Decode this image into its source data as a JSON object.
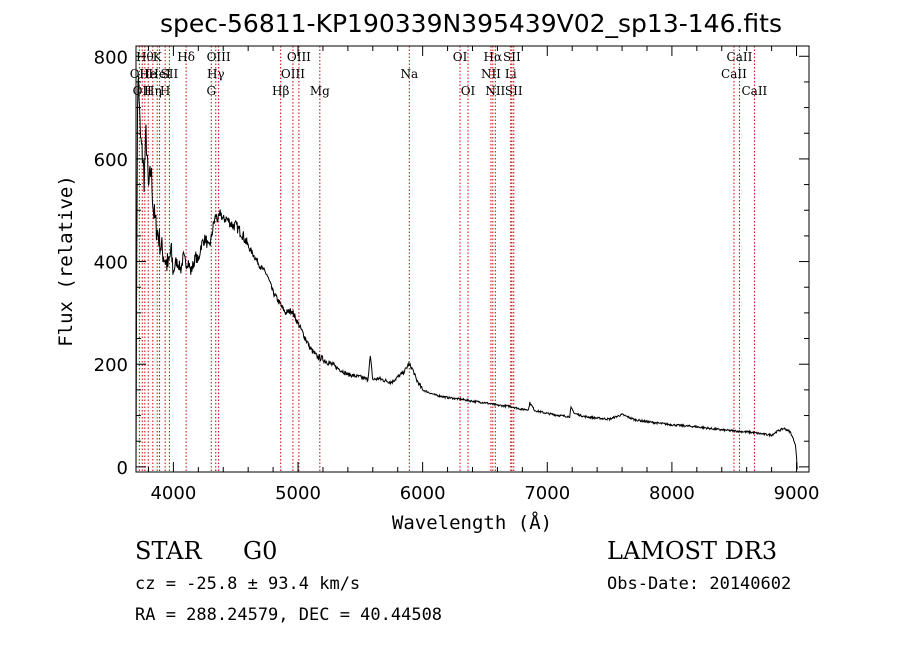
{
  "chart_data": {
    "type": "line",
    "title": "spec-56811-KP190339N395439V02_sp13-146.fits",
    "xlabel": "Wavelength (Å)",
    "ylabel": "Flux (relative)",
    "xlim": [
      3700,
      9100
    ],
    "ylim": [
      -10,
      820
    ],
    "x_ticks": [
      4000,
      5000,
      6000,
      7000,
      8000,
      9000
    ],
    "y_ticks": [
      0,
      200,
      400,
      600,
      800
    ],
    "x_tick_labels": [
      "4000",
      "5000",
      "6000",
      "7000",
      "8000",
      "9000"
    ],
    "y_tick_labels": [
      "0",
      "200",
      "400",
      "600",
      "800"
    ],
    "grid": false,
    "legend": "none",
    "series": [
      {
        "name": "flux",
        "x": [
          3700,
          3705,
          3712,
          3720,
          3728,
          3736,
          3745,
          3755,
          3765,
          3780,
          3800,
          3820,
          3840,
          3860,
          3880,
          3900,
          3920,
          3940,
          3960,
          3980,
          4000,
          4020,
          4040,
          4060,
          4080,
          4100,
          4120,
          4140,
          4160,
          4180,
          4200,
          4220,
          4240,
          4260,
          4280,
          4300,
          4320,
          4340,
          4360,
          4380,
          4400,
          4420,
          4440,
          4460,
          4480,
          4500,
          4550,
          4600,
          4650,
          4700,
          4750,
          4800,
          4850,
          4900,
          4950,
          5000,
          5050,
          5100,
          5150,
          5200,
          5300,
          5400,
          5500,
          5560,
          5580,
          5600,
          5650,
          5700,
          5750,
          5800,
          5850,
          5890,
          5920,
          5950,
          6000,
          6100,
          6200,
          6300,
          6400,
          6500,
          6560,
          6600,
          6700,
          6800,
          6850,
          6860,
          6900,
          7000,
          7100,
          7180,
          7190,
          7220,
          7300,
          7400,
          7500,
          7600,
          7700,
          7800,
          7900,
          8000,
          8100,
          8200,
          8300,
          8400,
          8500,
          8600,
          8650,
          8700,
          8800,
          8850,
          8900,
          8950,
          8990,
          9000,
          9005
        ],
        "values": [
          -10,
          330,
          710,
          760,
          690,
          640,
          620,
          600,
          560,
          650,
          540,
          580,
          500,
          470,
          450,
          430,
          415,
          400,
          390,
          420,
          380,
          400,
          395,
          385,
          410,
          395,
          400,
          380,
          395,
          410,
          400,
          430,
          440,
          445,
          425,
          440,
          470,
          490,
          480,
          495,
          480,
          485,
          480,
          475,
          470,
          470,
          455,
          430,
          410,
          390,
          375,
          340,
          320,
          300,
          305,
          280,
          255,
          230,
          215,
          210,
          195,
          180,
          175,
          170,
          215,
          170,
          172,
          168,
          165,
          175,
          185,
          200,
          190,
          170,
          150,
          140,
          135,
          132,
          128,
          125,
          122,
          120,
          118,
          112,
          112,
          125,
          110,
          104,
          100,
          98,
          115,
          104,
          98,
          95,
          93,
          102,
          92,
          88,
          85,
          82,
          80,
          78,
          75,
          72,
          70,
          68,
          67,
          65,
          62,
          70,
          75,
          68,
          45,
          20,
          -5
        ]
      }
    ],
    "reference_lines": [
      {
        "x": 3727,
        "label": "OII",
        "row": 1
      },
      {
        "x": 3750,
        "label": "OII",
        "row": 2
      },
      {
        "x": 3771,
        "label": "Hθ",
        "row": 0
      },
      {
        "x": 3798,
        "label": "He",
        "row": 1
      },
      {
        "x": 3835,
        "label": "Hη",
        "row": 2
      },
      {
        "x": 3870,
        "label": "K",
        "row": 0
      },
      {
        "x": 3889,
        "label": "HeI",
        "row": 1
      },
      {
        "x": 3934,
        "label": "H",
        "row": 2
      },
      {
        "x": 3968,
        "label": "SII",
        "row": 1
      },
      {
        "x": 4102,
        "label": "Hδ",
        "row": 0
      },
      {
        "x": 4304,
        "label": "G",
        "row": 2
      },
      {
        "x": 4340,
        "label": "Hγ",
        "row": 1
      },
      {
        "x": 4363,
        "label": "OIII",
        "row": 0
      },
      {
        "x": 4861,
        "label": "Hβ",
        "row": 2
      },
      {
        "x": 4959,
        "label": "OIII",
        "row": 1
      },
      {
        "x": 5007,
        "label": "OIII",
        "row": 0
      },
      {
        "x": 5175,
        "label": "Mg",
        "row": 2
      },
      {
        "x": 5893,
        "label": "Na",
        "row": 1
      },
      {
        "x": 6300,
        "label": "OI",
        "row": 0
      },
      {
        "x": 6364,
        "label": "OI",
        "row": 2
      },
      {
        "x": 6548,
        "label": "NII",
        "row": 1
      },
      {
        "x": 6563,
        "label": "Hα",
        "row": 0
      },
      {
        "x": 6583,
        "label": "NII",
        "row": 2
      },
      {
        "x": 6716,
        "label": "SII",
        "row": 0
      },
      {
        "x": 6707,
        "label": "Li",
        "row": 1
      },
      {
        "x": 6731,
        "label": "SII",
        "row": 2
      },
      {
        "x": 8498,
        "label": "CaII",
        "row": 1
      },
      {
        "x": 8542,
        "label": "CaII",
        "row": 0
      },
      {
        "x": 8662,
        "label": "CaII",
        "row": 2
      }
    ]
  },
  "info": {
    "object_class": "STAR",
    "subclass": "G0",
    "survey": "LAMOST DR3",
    "cz": "cz = -25.8 ± 93.4 km/s",
    "obs_date": "Obs-Date: 20140602",
    "coords": "RA = 288.24579, DEC =  40.44508"
  },
  "colors": {
    "line": "#000000",
    "reference": "#cc0000",
    "background": "#ffffff"
  }
}
